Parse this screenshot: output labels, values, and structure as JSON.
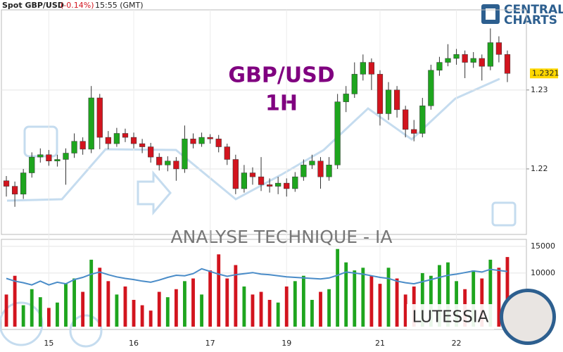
{
  "header": {
    "instrument": "Spot GBP/USD",
    "change": "(-0.14%)",
    "time": "15:55 (GMT)"
  },
  "logo": {
    "line1": "CENTRAL",
    "line2": "CHARTS"
  },
  "watermark": {
    "banner": "ANALYSE TECHNIQUE - IA",
    "brand": "LUTESSIA"
  },
  "chart_data": {
    "type": "candlestick",
    "title": "GBP/USD",
    "subtitle": "1H",
    "categories": [
      null,
      null,
      null,
      null,
      null,
      "15",
      null,
      null,
      null,
      null,
      null,
      null,
      null,
      null,
      null,
      "16",
      null,
      null,
      null,
      null,
      null,
      null,
      null,
      null,
      "17",
      null,
      null,
      null,
      null,
      null,
      null,
      null,
      null,
      "19",
      null,
      null,
      null,
      null,
      null,
      null,
      null,
      null,
      null,
      null,
      "21",
      null,
      null,
      null,
      null,
      null,
      null,
      null,
      null,
      "22",
      null,
      null,
      null,
      null,
      null,
      null
    ],
    "open": [
      1.2185,
      1.2178,
      1.2168,
      1.2195,
      1.2215,
      1.2218,
      1.221,
      1.2212,
      1.222,
      1.2235,
      1.2225,
      1.229,
      1.224,
      1.2232,
      1.2245,
      1.224,
      1.2232,
      1.2228,
      1.2215,
      1.2205,
      1.221,
      1.22,
      1.2238,
      1.2232,
      1.224,
      1.2238,
      1.2228,
      1.2212,
      1.2175,
      1.2195,
      1.219,
      1.218,
      1.2178,
      1.2182,
      1.2175,
      1.219,
      1.2205,
      1.221,
      1.219,
      1.2205,
      1.2285,
      1.2295,
      1.232,
      1.2335,
      1.232,
      1.227,
      1.23,
      1.2275,
      1.225,
      1.2245,
      1.228,
      1.2325,
      1.2335,
      1.234,
      1.2345,
      1.2335,
      1.234,
      1.233,
      1.236,
      1.2345
    ],
    "high": [
      1.2191,
      1.2184,
      1.22,
      1.2221,
      1.2226,
      1.2224,
      1.2218,
      1.2226,
      1.2245,
      1.224,
      1.2305,
      1.2295,
      1.2248,
      1.2252,
      1.2251,
      1.2246,
      1.2238,
      1.2233,
      1.222,
      1.2216,
      1.2215,
      1.2255,
      1.2245,
      1.2246,
      1.2244,
      1.2243,
      1.2232,
      1.2218,
      1.2205,
      1.2202,
      1.2215,
      1.2188,
      1.219,
      1.2188,
      1.2196,
      1.2212,
      1.2218,
      1.2215,
      1.2215,
      1.2295,
      1.2305,
      1.2335,
      1.2345,
      1.234,
      1.2325,
      1.231,
      1.2305,
      1.228,
      1.2262,
      1.229,
      1.2332,
      1.2342,
      1.2358,
      1.2352,
      1.235,
      1.2348,
      1.2345,
      1.2378,
      1.2368,
      1.235
    ],
    "low": [
      1.2165,
      1.2152,
      1.2162,
      1.2189,
      1.2208,
      1.2204,
      1.2203,
      1.218,
      1.2214,
      1.2218,
      1.222,
      1.2225,
      1.2225,
      1.2228,
      1.2234,
      1.2226,
      1.222,
      1.2208,
      1.2198,
      1.2197,
      1.2185,
      1.2195,
      1.2226,
      1.2228,
      1.2232,
      1.2221,
      1.2205,
      1.2168,
      1.217,
      1.218,
      1.2172,
      1.217,
      1.2168,
      1.2165,
      1.2171,
      1.2185,
      1.22,
      1.2175,
      1.2185,
      1.22,
      1.2272,
      1.229,
      1.2312,
      1.23,
      1.2255,
      1.2262,
      1.2265,
      1.224,
      1.2235,
      1.224,
      1.2275,
      1.2318,
      1.233,
      1.2332,
      1.2315,
      1.2328,
      1.2312,
      1.2325,
      1.2335,
      1.231
    ],
    "close": [
      1.2178,
      1.2168,
      1.2195,
      1.2215,
      1.2218,
      1.221,
      1.2212,
      1.222,
      1.2235,
      1.2225,
      1.229,
      1.224,
      1.2232,
      1.2245,
      1.224,
      1.2232,
      1.2228,
      1.2215,
      1.2205,
      1.221,
      1.22,
      1.2238,
      1.2232,
      1.224,
      1.2238,
      1.2228,
      1.2212,
      1.2175,
      1.2195,
      1.219,
      1.218,
      1.2178,
      1.2182,
      1.2175,
      1.219,
      1.2205,
      1.221,
      1.219,
      1.2205,
      1.2285,
      1.2295,
      1.232,
      1.2335,
      1.232,
      1.227,
      1.23,
      1.2275,
      1.225,
      1.2245,
      1.228,
      1.2325,
      1.2335,
      1.234,
      1.2345,
      1.2335,
      1.234,
      1.233,
      1.236,
      1.2345,
      1.2321
    ],
    "up_color": "#1ea51e",
    "down_color": "#d2141e",
    "ylim": [
      1.2117,
      1.2414
    ],
    "yticks": [
      1.22,
      1.23
    ],
    "grid": true,
    "volume": {
      "values": [
        6000,
        9500,
        4000,
        7000,
        5500,
        3500,
        4500,
        8000,
        9000,
        6500,
        12500,
        11000,
        8500,
        6000,
        7500,
        5000,
        4000,
        3000,
        6500,
        5500,
        7000,
        8500,
        9000,
        6000,
        10500,
        13500,
        9000,
        11500,
        7500,
        6000,
        6500,
        5000,
        4500,
        7500,
        8500,
        9500,
        5000,
        6500,
        7000,
        14500,
        12000,
        10500,
        11000,
        9500,
        8000,
        11000,
        9000,
        6000,
        7500,
        10000,
        9500,
        11500,
        12000,
        8500,
        7000,
        10500,
        9000,
        12500,
        11000,
        13000
      ],
      "average": [
        9000,
        8500,
        8200,
        7800,
        8500,
        7800,
        8300,
        8000,
        8800,
        9200,
        9800,
        10200,
        9700,
        9300,
        9000,
        8800,
        8500,
        8300,
        8700,
        9200,
        9600,
        9500,
        9900,
        10800,
        10300,
        9800,
        9400,
        9700,
        9900,
        10100,
        9800,
        9700,
        9500,
        9300,
        9200,
        9100,
        9000,
        8900,
        9100,
        9600,
        10200,
        10000,
        9800,
        9500,
        9200,
        9000,
        8500,
        8200,
        8000,
        8400,
        8800,
        9200,
        9600,
        9800,
        10100,
        10400,
        10200,
        10700,
        10500,
        10300
      ],
      "average_color": "#4a8cc8",
      "ylim": [
        0,
        16300
      ],
      "yticks": [
        10000,
        15000
      ]
    }
  }
}
